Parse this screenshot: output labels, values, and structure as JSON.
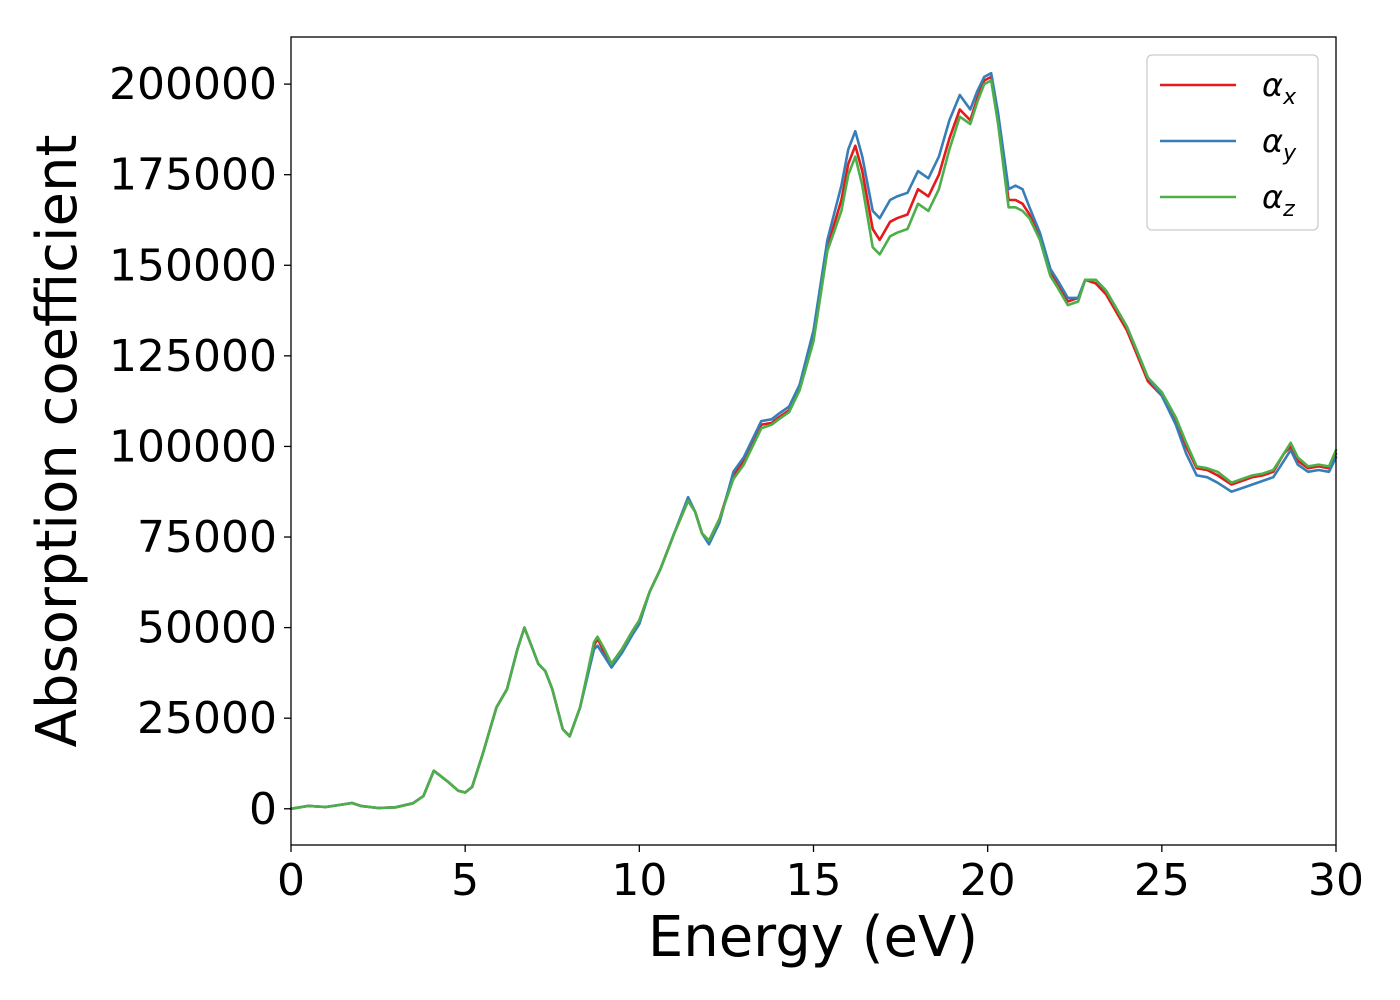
{
  "chart_data": {
    "type": "line",
    "title": "",
    "xlabel": "Energy (eV)",
    "ylabel": "Absorption coefficient",
    "xlim": [
      0,
      30
    ],
    "ylim": [
      -10000,
      213000
    ],
    "xticks": [
      0,
      5,
      10,
      15,
      20,
      25,
      30
    ],
    "yticks": [
      0,
      25000,
      50000,
      75000,
      100000,
      125000,
      150000,
      175000,
      200000
    ],
    "grid": false,
    "legend_position": "top-right",
    "x": [
      0,
      0.5,
      1.0,
      1.5,
      1.75,
      2.0,
      2.5,
      3.0,
      3.5,
      3.8,
      4.1,
      4.5,
      4.8,
      5.0,
      5.2,
      5.5,
      5.9,
      6.2,
      6.5,
      6.7,
      6.9,
      7.1,
      7.3,
      7.5,
      7.8,
      8.0,
      8.3,
      8.7,
      8.8,
      9.0,
      9.2,
      9.5,
      9.8,
      10.0,
      10.3,
      10.6,
      11.0,
      11.4,
      11.6,
      11.8,
      12.0,
      12.3,
      12.7,
      13.0,
      13.3,
      13.5,
      13.8,
      14.0,
      14.3,
      14.6,
      15.0,
      15.4,
      15.8,
      16.0,
      16.2,
      16.4,
      16.7,
      16.9,
      17.2,
      17.4,
      17.7,
      18.0,
      18.3,
      18.6,
      18.9,
      19.2,
      19.5,
      19.7,
      19.9,
      20.1,
      20.3,
      20.6,
      20.8,
      21.0,
      21.2,
      21.5,
      21.8,
      22.0,
      22.3,
      22.6,
      22.8,
      23.1,
      23.4,
      23.7,
      24.0,
      24.3,
      24.6,
      25.0,
      25.4,
      25.7,
      26.0,
      26.3,
      26.6,
      27.0,
      27.3,
      27.6,
      27.9,
      28.2,
      28.5,
      28.7,
      28.9,
      29.2,
      29.5,
      29.8,
      30.0
    ],
    "series": [
      {
        "name": "αx",
        "color": "#e41a1c",
        "values": [
          0,
          800,
          500,
          1200,
          1600,
          800,
          200,
          400,
          1500,
          3500,
          10500,
          7500,
          5000,
          4500,
          6000,
          15000,
          28000,
          33000,
          44000,
          50000,
          45000,
          40000,
          38000,
          33000,
          22000,
          20000,
          28000,
          45000,
          47000,
          43000,
          40000,
          44000,
          49000,
          52000,
          60000,
          66000,
          76000,
          85000,
          82000,
          76000,
          74000,
          80000,
          92000,
          96000,
          102000,
          106000,
          106500,
          108000,
          110000,
          116000,
          130000,
          155000,
          168000,
          178000,
          183000,
          176000,
          160000,
          157000,
          162000,
          163000,
          164000,
          171000,
          169000,
          175000,
          185000,
          193000,
          190000,
          196000,
          201000,
          202000,
          190000,
          168000,
          168000,
          167000,
          164000,
          158000,
          148000,
          145000,
          140000,
          141000,
          146000,
          145000,
          142000,
          137000,
          132000,
          125000,
          118000,
          114000,
          107000,
          100000,
          94000,
          93500,
          92000,
          89500,
          90500,
          91500,
          92000,
          93000,
          98000,
          100000,
          96000,
          94000,
          94500,
          94000,
          98000
        ]
      },
      {
        "name": "αy",
        "color": "#377eb8",
        "values": [
          0,
          800,
          500,
          1200,
          1600,
          800,
          200,
          400,
          1500,
          3500,
          10500,
          7500,
          5000,
          4500,
          6000,
          15000,
          28000,
          33000,
          44000,
          50000,
          45000,
          40000,
          38000,
          33000,
          22000,
          20000,
          28000,
          44000,
          45000,
          42000,
          39000,
          43000,
          48000,
          51000,
          60000,
          66000,
          76000,
          86000,
          82000,
          76000,
          73000,
          79000,
          93000,
          97000,
          103000,
          107000,
          107500,
          109000,
          111000,
          117000,
          132000,
          157000,
          172000,
          182000,
          187000,
          180000,
          165000,
          163000,
          168000,
          169000,
          170000,
          176000,
          174000,
          180000,
          190000,
          197000,
          193000,
          198000,
          202000,
          203000,
          192000,
          171000,
          172000,
          171000,
          166000,
          159000,
          149000,
          146000,
          141000,
          141000,
          146000,
          146000,
          143000,
          138000,
          133000,
          126000,
          119000,
          114000,
          106000,
          98000,
          92000,
          91500,
          90000,
          87500,
          88500,
          89500,
          90500,
          91500,
          96000,
          99000,
          95000,
          93000,
          93500,
          93000,
          97000
        ]
      },
      {
        "name": "αz",
        "color": "#4daf4a",
        "values": [
          0,
          800,
          500,
          1200,
          1600,
          800,
          200,
          400,
          1500,
          3500,
          10500,
          7500,
          5000,
          4500,
          6000,
          15000,
          28000,
          33000,
          44000,
          50000,
          45000,
          40000,
          38000,
          33000,
          22000,
          20000,
          28000,
          46000,
          47500,
          44000,
          40000,
          44000,
          49000,
          52000,
          60000,
          66000,
          76000,
          85000,
          82000,
          76000,
          74000,
          80000,
          91000,
          95000,
          101000,
          105000,
          106000,
          107500,
          109500,
          115500,
          129000,
          154000,
          165000,
          175000,
          180000,
          172000,
          155000,
          153000,
          158000,
          159000,
          160000,
          167000,
          165000,
          171000,
          182000,
          191000,
          189000,
          195000,
          200000,
          201000,
          189000,
          166000,
          166000,
          165000,
          163000,
          157000,
          147000,
          144000,
          139000,
          140000,
          146000,
          146000,
          143000,
          138000,
          133000,
          126000,
          119000,
          115000,
          108000,
          101000,
          94500,
          94000,
          93000,
          90000,
          91000,
          92000,
          92500,
          93500,
          98000,
          101000,
          97000,
          94500,
          95000,
          94500,
          99000
        ]
      }
    ]
  },
  "legend": [
    {
      "symbol": "α",
      "subscript": "x",
      "color": "#e41a1c"
    },
    {
      "symbol": "α",
      "subscript": "y",
      "color": "#377eb8"
    },
    {
      "symbol": "α",
      "subscript": "z",
      "color": "#4daf4a"
    }
  ]
}
